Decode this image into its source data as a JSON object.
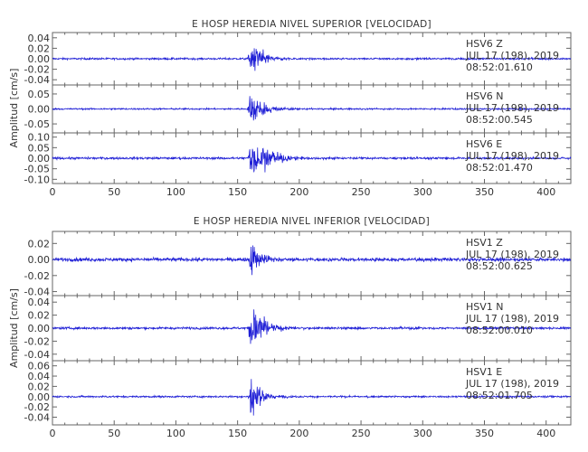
{
  "trace_color": "#1f1fd6",
  "chart_data": [
    {
      "type": "line",
      "title": "E HOSP HEREDIA NIVEL SUPERIOR [VELOCIDAD]",
      "xlabel": "",
      "ylabel": "Amplitud [cm/s]",
      "xlim": [
        0,
        420
      ],
      "x_ticks": [
        "0",
        "50",
        "100",
        "150",
        "200",
        "250",
        "300",
        "350",
        "400"
      ],
      "panels": [
        {
          "y_ticks": [
            "0.04",
            "0.02",
            "0.00",
            "-0.02",
            "-0.04"
          ],
          "ylim": [
            -0.05,
            0.05
          ],
          "peak": 0.04,
          "noise": 0.0012,
          "decay": 9,
          "annotation": [
            "HSV6    Z",
            "JUL 17 (198), 2019",
            "08:52:01.610"
          ]
        },
        {
          "y_ticks": [
            "0.05",
            "0.00",
            "-0.05"
          ],
          "ylim": [
            -0.08,
            0.08
          ],
          "peak": 0.055,
          "noise": 0.0018,
          "decay": 11,
          "annotation": [
            "HSV6    N",
            "JUL 17 (198), 2019",
            "08:52:00.545"
          ]
        },
        {
          "y_ticks": [
            "0.10",
            "0.05",
            "0.00",
            "-0.05",
            "-0.10"
          ],
          "ylim": [
            -0.12,
            0.12
          ],
          "peak": 0.11,
          "noise": 0.0035,
          "decay": 14,
          "annotation": [
            "HSV6    E",
            "JUL 17 (198), 2019",
            "08:52:01.470"
          ]
        }
      ]
    },
    {
      "type": "line",
      "title": "E HOSP HEREDIA NIVEL INFERIOR [VELOCIDAD]",
      "xlabel": "",
      "ylabel": "Amplitud [cm/s]",
      "xlim": [
        0,
        420
      ],
      "x_ticks": [
        "0",
        "50",
        "100",
        "150",
        "200",
        "250",
        "300",
        "350",
        "400"
      ],
      "panels": [
        {
          "y_ticks": [
            "0.02",
            "0.00",
            "-0.02",
            "-0.04"
          ],
          "ylim": [
            -0.045,
            0.035
          ],
          "peak": 0.03,
          "noise": 0.0015,
          "decay": 8,
          "annotation": [
            "HSV1    Z",
            "JUL 17 (198), 2019",
            "08:52:00.625"
          ]
        },
        {
          "y_ticks": [
            "0.04",
            "0.02",
            "0.00",
            "-0.02",
            "-0.04"
          ],
          "ylim": [
            -0.05,
            0.05
          ],
          "peak": 0.042,
          "noise": 0.0012,
          "decay": 10,
          "annotation": [
            "HSV1    N",
            "JUL 17 (198), 2019",
            "08:52:00.010"
          ]
        },
        {
          "y_ticks": [
            "0.06",
            "0.04",
            "0.02",
            "0.00",
            "-0.02",
            "-0.04"
          ],
          "ylim": [
            -0.055,
            0.07
          ],
          "peak": 0.05,
          "noise": 0.0012,
          "decay": 8,
          "annotation": [
            "HSV1    E",
            "JUL 17 (198), 2019",
            "08:52:01.705"
          ]
        }
      ]
    }
  ]
}
